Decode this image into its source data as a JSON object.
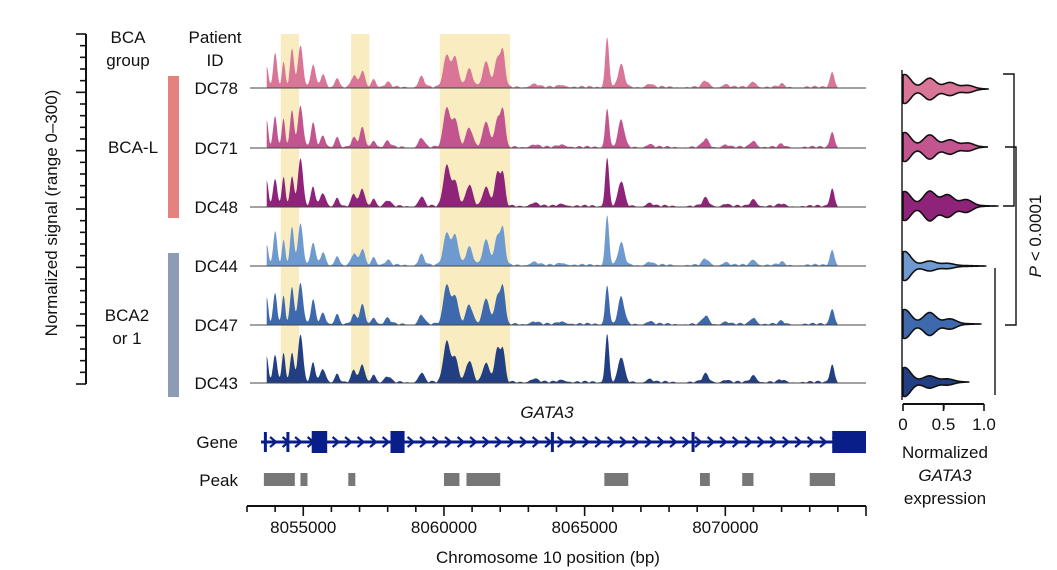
{
  "chart_data": {
    "type": "area",
    "ylabel": "Normalized signal (range 0–300)",
    "xlabel": "Chromosome 10 position (bp)",
    "xlim": [
      8053000,
      8075000
    ],
    "ylim": [
      0,
      300
    ],
    "x_ticks": [
      8055000,
      8060000,
      8065000,
      8070000
    ],
    "header_group": "BCA group",
    "header_group_lines": [
      "BCA",
      "group"
    ],
    "header_patient_lines": [
      "Patient",
      "ID"
    ],
    "groups": [
      {
        "label": "BCA-L",
        "lines": [
          "BCA-L"
        ],
        "color": "#e4837d",
        "patients": [
          "DC78",
          "DC71",
          "DC48"
        ]
      },
      {
        "label": "BCA2 or 1",
        "lines": [
          "BCA2",
          "or 1"
        ],
        "color": "#8e9bb5",
        "patients": [
          "DC44",
          "DC47",
          "DC43"
        ]
      }
    ],
    "series": [
      {
        "name": "DC78",
        "group": "BCA-L",
        "color": "#d97596"
      },
      {
        "name": "DC71",
        "group": "BCA-L",
        "color": "#c25590"
      },
      {
        "name": "DC48",
        "group": "BCA-L",
        "color": "#8e2379"
      },
      {
        "name": "DC44",
        "group": "BCA2 or 1",
        "color": "#6f9ad0"
      },
      {
        "name": "DC47",
        "group": "BCA2 or 1",
        "color": "#3e6aad"
      },
      {
        "name": "DC43",
        "group": "BCA2 or 1",
        "color": "#223f83"
      }
    ],
    "peaks_profile": [
      {
        "x": 8053700,
        "h": 0.45,
        "w": 60
      },
      {
        "x": 8054000,
        "h": 0.55,
        "w": 70
      },
      {
        "x": 8054300,
        "h": 0.5,
        "w": 60
      },
      {
        "x": 8054600,
        "h": 0.65,
        "w": 70
      },
      {
        "x": 8054900,
        "h": 0.8,
        "w": 90
      },
      {
        "x": 8055350,
        "h": 0.4,
        "w": 80
      },
      {
        "x": 8055700,
        "h": 0.22,
        "w": 90
      },
      {
        "x": 8056200,
        "h": 0.18,
        "w": 80
      },
      {
        "x": 8056800,
        "h": 0.2,
        "w": 90
      },
      {
        "x": 8057100,
        "h": 0.32,
        "w": 90
      },
      {
        "x": 8057500,
        "h": 0.15,
        "w": 80
      },
      {
        "x": 8058000,
        "h": 0.1,
        "w": 100
      },
      {
        "x": 8059200,
        "h": 0.18,
        "w": 100
      },
      {
        "x": 8060100,
        "h": 0.7,
        "w": 120
      },
      {
        "x": 8060400,
        "h": 0.5,
        "w": 110
      },
      {
        "x": 8060900,
        "h": 0.35,
        "w": 120
      },
      {
        "x": 8061500,
        "h": 0.45,
        "w": 120
      },
      {
        "x": 8061900,
        "h": 0.55,
        "w": 100
      },
      {
        "x": 8062100,
        "h": 0.6,
        "w": 80
      },
      {
        "x": 8063200,
        "h": 0.06,
        "w": 150
      },
      {
        "x": 8064200,
        "h": 0.05,
        "w": 150
      },
      {
        "x": 8065800,
        "h": 0.85,
        "w": 70
      },
      {
        "x": 8066300,
        "h": 0.45,
        "w": 110
      },
      {
        "x": 8067300,
        "h": 0.06,
        "w": 120
      },
      {
        "x": 8069300,
        "h": 0.14,
        "w": 110
      },
      {
        "x": 8070000,
        "h": 0.05,
        "w": 120
      },
      {
        "x": 8071000,
        "h": 0.12,
        "w": 110
      },
      {
        "x": 8072000,
        "h": 0.05,
        "w": 100
      },
      {
        "x": 8073800,
        "h": 0.3,
        "w": 80
      },
      {
        "x": 8074300,
        "h": 0.06,
        "w": 100
      }
    ],
    "highlight_regions": [
      {
        "start": 8054200,
        "end": 8054850
      },
      {
        "start": 8056700,
        "end": 8057350
      },
      {
        "start": 8059850,
        "end": 8062350
      }
    ],
    "gene": {
      "name": "GATA3",
      "track_label": "Gene",
      "start": 8053500,
      "end": 8075000,
      "color": "#0a1e8a",
      "exons": [
        {
          "start": 8053600,
          "end": 8053680
        },
        {
          "start": 8054400,
          "end": 8054460
        },
        {
          "start": 8055300,
          "end": 8055850
        },
        {
          "start": 8058100,
          "end": 8058600
        },
        {
          "start": 8063800,
          "end": 8063860
        },
        {
          "start": 8068800,
          "end": 8068860
        },
        {
          "start": 8073800,
          "end": 8075000
        }
      ]
    },
    "peaks": {
      "track_label": "Peak",
      "color": "#777777",
      "intervals": [
        {
          "start": 8053600,
          "end": 8054700
        },
        {
          "start": 8054900,
          "end": 8055150
        },
        {
          "start": 8056600,
          "end": 8056850
        },
        {
          "start": 8060000,
          "end": 8060550
        },
        {
          "start": 8060800,
          "end": 8062000
        },
        {
          "start": 8065700,
          "end": 8066550
        },
        {
          "start": 8069100,
          "end": 8069450
        },
        {
          "start": 8070600,
          "end": 8071000
        },
        {
          "start": 8073000,
          "end": 8073900
        }
      ]
    },
    "violin": {
      "xlabel_lines": [
        "Normalized",
        "GATA3",
        "expression"
      ],
      "xlabel_italic": "GATA3",
      "xlim": [
        0,
        1.1
      ],
      "x_ticks": [
        0,
        0.5,
        1.0
      ],
      "x_tick_labels": [
        "0",
        "0.5",
        "1.0"
      ],
      "stat_text": "< 0.0001",
      "stat_symbol": "P",
      "distributions": [
        {
          "name": "DC78",
          "max": 1.06,
          "modes": [
            {
              "x": 0.02,
              "h": 1.0
            },
            {
              "x": 0.33,
              "h": 0.75
            },
            {
              "x": 0.58,
              "h": 0.45
            },
            {
              "x": 0.8,
              "h": 0.25
            }
          ]
        },
        {
          "name": "DC71",
          "max": 1.05,
          "modes": [
            {
              "x": 0.02,
              "h": 1.0
            },
            {
              "x": 0.33,
              "h": 0.85
            },
            {
              "x": 0.58,
              "h": 0.5
            },
            {
              "x": 0.8,
              "h": 0.28
            }
          ]
        },
        {
          "name": "DC48",
          "max": 1.18,
          "modes": [
            {
              "x": 0.02,
              "h": 1.0
            },
            {
              "x": 0.33,
              "h": 1.05
            },
            {
              "x": 0.55,
              "h": 0.8
            },
            {
              "x": 0.78,
              "h": 0.45
            }
          ]
        },
        {
          "name": "DC44",
          "max": 1.03,
          "modes": [
            {
              "x": 0.02,
              "h": 1.0
            },
            {
              "x": 0.33,
              "h": 0.3
            },
            {
              "x": 0.55,
              "h": 0.15
            }
          ]
        },
        {
          "name": "DC47",
          "max": 0.97,
          "modes": [
            {
              "x": 0.02,
              "h": 1.0
            },
            {
              "x": 0.33,
              "h": 0.8
            },
            {
              "x": 0.58,
              "h": 0.35
            }
          ]
        },
        {
          "name": "DC43",
          "max": 0.82,
          "modes": [
            {
              "x": 0.02,
              "h": 1.0
            },
            {
              "x": 0.33,
              "h": 0.4
            },
            {
              "x": 0.55,
              "h": 0.2
            }
          ]
        }
      ]
    },
    "colors": {
      "highlight": "#f7e9b5",
      "axis": "#111111",
      "baseline": "#444444"
    }
  }
}
